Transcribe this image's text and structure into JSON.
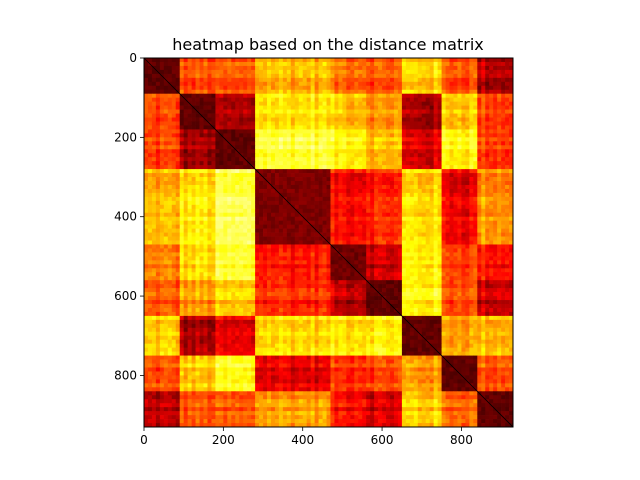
{
  "chart_data": {
    "type": "heatmap",
    "title": "heatmap based on the distance matrix",
    "xlabel": "",
    "ylabel": "",
    "xlim": [
      0,
      930
    ],
    "ylim": [
      930,
      0
    ],
    "x_ticks": [
      0,
      200,
      400,
      600,
      800
    ],
    "y_ticks": [
      0,
      200,
      400,
      600,
      800
    ],
    "grid": false,
    "colormap": "hot",
    "matrix_size": 930,
    "block_boundaries": [
      0,
      95,
      185,
      280,
      470,
      565,
      655,
      750,
      840,
      930
    ],
    "block_distance_matrix": [
      [
        0.14,
        0.46,
        0.46,
        0.62,
        0.52,
        0.48,
        0.66,
        0.48,
        0.25
      ],
      [
        0.46,
        0.14,
        0.24,
        0.7,
        0.66,
        0.58,
        0.24,
        0.66,
        0.46
      ],
      [
        0.46,
        0.24,
        0.14,
        0.8,
        0.75,
        0.64,
        0.32,
        0.75,
        0.46
      ],
      [
        0.62,
        0.7,
        0.8,
        0.18,
        0.38,
        0.42,
        0.68,
        0.35,
        0.58
      ],
      [
        0.52,
        0.66,
        0.75,
        0.38,
        0.16,
        0.28,
        0.7,
        0.45,
        0.38
      ],
      [
        0.48,
        0.58,
        0.64,
        0.42,
        0.28,
        0.14,
        0.72,
        0.48,
        0.3
      ],
      [
        0.66,
        0.24,
        0.32,
        0.68,
        0.7,
        0.72,
        0.14,
        0.6,
        0.64
      ],
      [
        0.48,
        0.66,
        0.75,
        0.35,
        0.45,
        0.48,
        0.6,
        0.14,
        0.5
      ],
      [
        0.25,
        0.46,
        0.46,
        0.58,
        0.38,
        0.3,
        0.64,
        0.5,
        0.14
      ]
    ]
  }
}
